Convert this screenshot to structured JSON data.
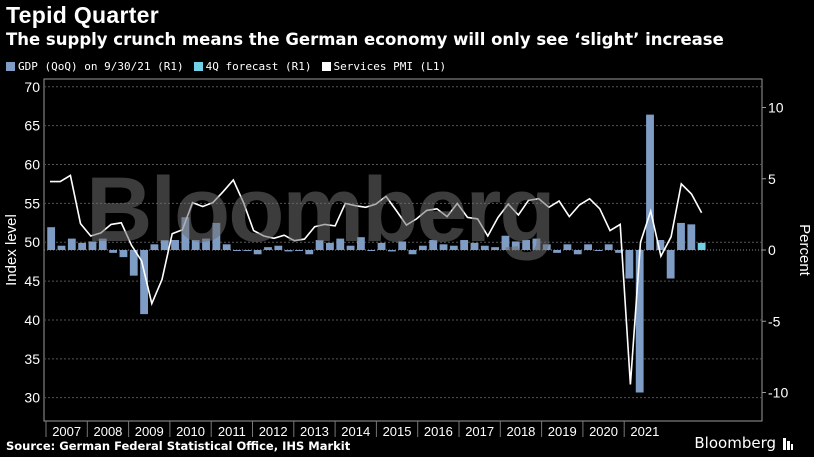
{
  "header": {
    "title": "Tepid Quarter",
    "subtitle": "The supply crunch means the German economy will only see ‘slight’ increase"
  },
  "legend": [
    {
      "label": "GDP (QoQ) on 9/30/21 (R1)",
      "color": "#7f9cc5"
    },
    {
      "label": "4Q forecast (R1)",
      "color": "#6fd0e6"
    },
    {
      "label": "Services PMI (L1)",
      "color": "#ffffff"
    }
  ],
  "footer": {
    "source": "Source: German Federal Statistical Office, IHS Markit",
    "brand": "Bloomberg"
  },
  "watermark": "Bloomberg",
  "chart_data": {
    "type": "bar+line",
    "categories": [
      "2007",
      "2008",
      "2009",
      "2010",
      "2011",
      "2012",
      "2013",
      "2014",
      "2015",
      "2016",
      "2017",
      "2018",
      "2019",
      "2020",
      "2021"
    ],
    "yaxis_left": {
      "label": "Index level",
      "ylim": [
        27,
        71
      ],
      "ticks": [
        30,
        35,
        40,
        45,
        50,
        55,
        60,
        65,
        70
      ]
    },
    "yaxis_right": {
      "label": "Percent",
      "ylim": [
        -12,
        12
      ],
      "ticks": [
        -10,
        -5,
        0,
        5,
        10
      ]
    },
    "grid": true,
    "legend_position": "top-left",
    "gdp_qoq": [
      1.6,
      0.3,
      0.8,
      0.5,
      0.6,
      0.8,
      -0.2,
      -0.5,
      -1.8,
      -4.5,
      0.4,
      0.7,
      0.7,
      2.3,
      0.7,
      0.8,
      1.9,
      0.4,
      0.0,
      0.0,
      -0.3,
      0.2,
      0.3,
      -0.1,
      0.0,
      -0.3,
      0.7,
      0.5,
      0.8,
      0.3,
      0.9,
      0.0,
      0.5,
      -0.1,
      0.6,
      -0.3,
      0.3,
      0.7,
      0.4,
      0.3,
      0.7,
      0.5,
      0.3,
      0.2,
      1.0,
      0.6,
      0.7,
      0.8,
      0.4,
      -0.2,
      0.4,
      -0.3,
      0.4,
      0.0,
      0.4,
      -0.2,
      -2.0,
      -10.0,
      9.5,
      0.7,
      -2.0,
      1.9,
      1.8
    ],
    "forecast_4q": [
      0.5
    ],
    "services_pmi": [
      57.8,
      57.8,
      58.6,
      52.4,
      50.8,
      51.2,
      52.3,
      52.5,
      49.6,
      47.6,
      42.1,
      45.2,
      51.1,
      51.6,
      55.1,
      54.6,
      55.1,
      56.5,
      58.0,
      55.1,
      51.5,
      50.8,
      50.5,
      50.9,
      50.2,
      50.4,
      52.0,
      52.3,
      52.1,
      55.0,
      54.7,
      54.5,
      54.9,
      55.9,
      54.1,
      52.2,
      53.0,
      54.1,
      54.3,
      53.3,
      55.0,
      53.2,
      53.0,
      50.8,
      53.2,
      54.9,
      53.5,
      55.4,
      55.6,
      54.5,
      55.3,
      53.3,
      54.8,
      55.6,
      54.3,
      51.5,
      52.3,
      31.7,
      50.0,
      54.0,
      48.2,
      50.7,
      57.5,
      56.2,
      53.8
    ]
  }
}
